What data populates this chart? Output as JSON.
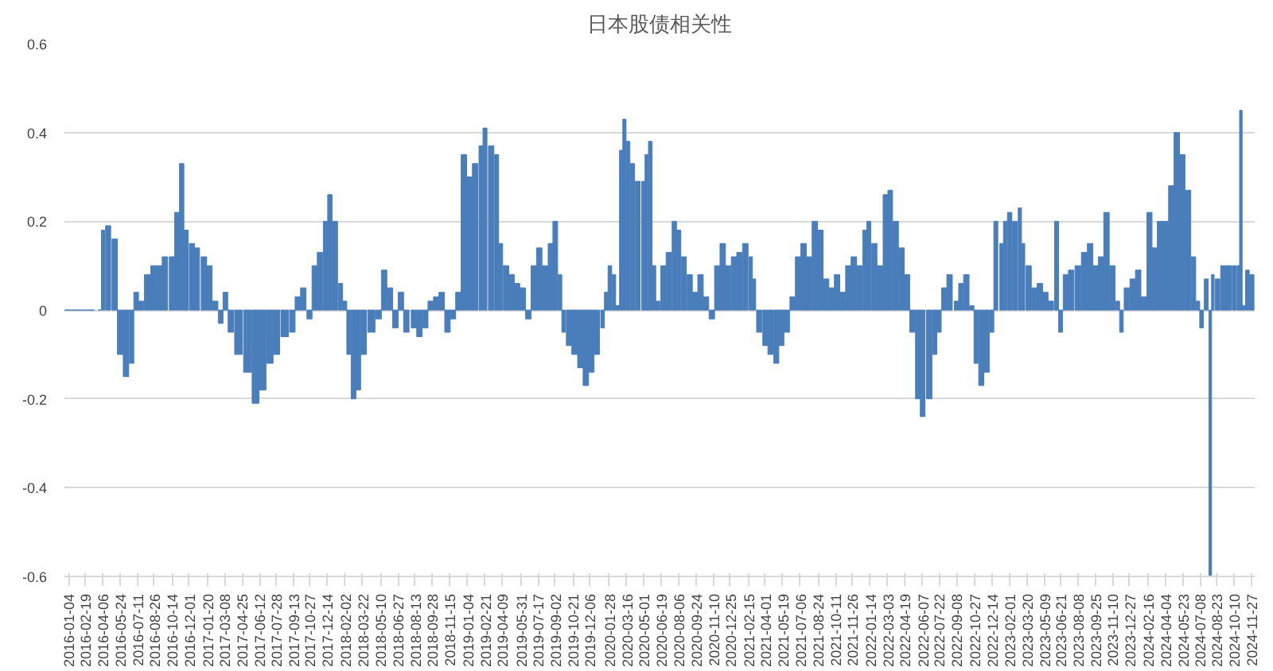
{
  "chart_data": {
    "type": "bar",
    "title": "日本股债相关性",
    "color": "#4a7ebb",
    "grid": "y",
    "xlim": [
      "2015-12-24",
      "2024-12-05"
    ],
    "xticks": [
      "2016-01-04",
      "2016-02-19",
      "2016-04-06",
      "2016-05-24",
      "2016-07-11",
      "2016-08-26",
      "2016-10-14",
      "2016-12-01",
      "2017-01-20",
      "2017-03-08",
      "2017-04-25",
      "2017-06-12",
      "2017-07-28",
      "2017-09-13",
      "2017-10-27",
      "2017-12-14",
      "2018-02-02",
      "2018-03-22",
      "2018-05-10",
      "2018-06-27",
      "2018-08-13",
      "2018-09-28",
      "2018-11-15",
      "2019-01-04",
      "2019-02-21",
      "2019-04-09",
      "2019-05-31",
      "2019-07-17",
      "2019-09-02",
      "2019-10-21",
      "2019-12-06",
      "2020-01-28",
      "2020-03-16",
      "2020-05-01",
      "2020-06-19",
      "2020-08-06",
      "2020-09-24",
      "2020-11-10",
      "2020-12-25",
      "2021-02-15",
      "2021-04-01",
      "2021-05-19",
      "2021-07-06",
      "2021-08-24",
      "2021-10-11",
      "2021-11-26",
      "2022-01-14",
      "2022-03-03",
      "2022-04-19",
      "2022-06-07",
      "2022-07-22",
      "2022-09-08",
      "2022-10-27",
      "2022-12-14",
      "2023-02-01",
      "2023-03-20",
      "2023-05-09",
      "2023-06-21",
      "2023-08-08",
      "2023-09-25",
      "2023-11-10",
      "2023-12-27",
      "2024-02-16",
      "2024-04-04",
      "2024-05-23",
      "2024-07-08",
      "2024-08-23",
      "2024-10-10",
      "2024-11-27"
    ],
    "ylim": [
      -0.6,
      0.6
    ],
    "yticks": [
      -0.6,
      -0.4,
      -0.2,
      0,
      0.2,
      0.4,
      0.6
    ],
    "x": [
      "2016-01-04",
      "2016-02-01",
      "2016-03-01",
      "2016-03-30",
      "2016-04-08",
      "2016-04-22",
      "2016-05-10",
      "2016-05-25",
      "2016-06-10",
      "2016-06-25",
      "2016-07-08",
      "2016-07-22",
      "2016-08-08",
      "2016-08-25",
      "2016-09-10",
      "2016-09-25",
      "2016-10-14",
      "2016-10-28",
      "2016-11-10",
      "2016-11-22",
      "2016-12-08",
      "2016-12-22",
      "2017-01-10",
      "2017-01-25",
      "2017-02-10",
      "2017-02-25",
      "2017-03-10",
      "2017-03-25",
      "2017-04-15",
      "2017-05-10",
      "2017-06-01",
      "2017-06-20",
      "2017-07-10",
      "2017-07-28",
      "2017-08-20",
      "2017-09-10",
      "2017-09-25",
      "2017-10-10",
      "2017-10-27",
      "2017-11-10",
      "2017-11-25",
      "2017-12-10",
      "2017-12-22",
      "2018-01-05",
      "2018-01-20",
      "2018-02-01",
      "2018-02-12",
      "2018-02-25",
      "2018-03-10",
      "2018-03-25",
      "2018-04-15",
      "2018-05-05",
      "2018-05-20",
      "2018-06-05",
      "2018-06-20",
      "2018-07-05",
      "2018-07-20",
      "2018-08-10",
      "2018-08-25",
      "2018-09-10",
      "2018-09-25",
      "2018-10-10",
      "2018-10-25",
      "2018-11-10",
      "2018-11-25",
      "2018-12-10",
      "2018-12-25",
      "2019-01-10",
      "2019-01-25",
      "2019-02-10",
      "2019-02-21",
      "2019-03-10",
      "2019-03-25",
      "2019-04-05",
      "2019-04-20",
      "2019-05-05",
      "2019-05-20",
      "2019-06-05",
      "2019-06-20",
      "2019-07-05",
      "2019-07-20",
      "2019-08-05",
      "2019-08-20",
      "2019-09-02",
      "2019-09-15",
      "2019-09-25",
      "2019-10-10",
      "2019-10-25",
      "2019-11-10",
      "2019-11-25",
      "2019-12-10",
      "2019-12-25",
      "2020-01-10",
      "2020-01-20",
      "2020-01-30",
      "2020-02-10",
      "2020-02-20",
      "2020-03-01",
      "2020-03-10",
      "2020-03-20",
      "2020-04-01",
      "2020-04-15",
      "2020-05-01",
      "2020-05-10",
      "2020-05-20",
      "2020-05-30",
      "2020-06-10",
      "2020-06-25",
      "2020-07-10",
      "2020-07-25",
      "2020-08-06",
      "2020-08-20",
      "2020-09-05",
      "2020-09-20",
      "2020-10-05",
      "2020-10-20",
      "2020-11-05",
      "2020-11-20",
      "2020-12-05",
      "2020-12-20",
      "2021-01-05",
      "2021-01-20",
      "2021-02-05",
      "2021-02-20",
      "2021-03-01",
      "2021-03-15",
      "2021-04-01",
      "2021-04-15",
      "2021-05-01",
      "2021-05-15",
      "2021-05-30",
      "2021-06-15",
      "2021-06-30",
      "2021-07-15",
      "2021-07-30",
      "2021-08-15",
      "2021-08-30",
      "2021-09-15",
      "2021-09-30",
      "2021-10-15",
      "2021-10-30",
      "2021-11-15",
      "2021-11-30",
      "2021-12-15",
      "2021-12-30",
      "2022-01-10",
      "2022-01-25",
      "2022-02-10",
      "2022-02-25",
      "2022-03-10",
      "2022-03-25",
      "2022-04-10",
      "2022-04-25",
      "2022-05-10",
      "2022-05-25",
      "2022-06-07",
      "2022-06-25",
      "2022-07-10",
      "2022-07-22",
      "2022-08-05",
      "2022-08-20",
      "2022-09-08",
      "2022-09-20",
      "2022-10-05",
      "2022-10-20",
      "2022-11-01",
      "2022-11-15",
      "2022-11-30",
      "2022-12-14",
      "2022-12-25",
      "2023-01-10",
      "2023-01-20",
      "2023-02-01",
      "2023-02-15",
      "2023-03-01",
      "2023-03-10",
      "2023-03-25",
      "2023-04-10",
      "2023-04-25",
      "2023-05-10",
      "2023-05-25",
      "2023-06-10",
      "2023-06-21",
      "2023-07-05",
      "2023-07-20",
      "2023-08-08",
      "2023-08-25",
      "2023-09-10",
      "2023-09-25",
      "2023-10-10",
      "2023-10-25",
      "2023-11-10",
      "2023-11-25",
      "2023-12-05",
      "2023-12-20",
      "2024-01-05",
      "2024-01-20",
      "2024-02-05",
      "2024-02-20",
      "2024-03-05",
      "2024-03-20",
      "2024-04-05",
      "2024-04-20",
      "2024-05-05",
      "2024-05-20",
      "2024-06-05",
      "2024-06-20",
      "2024-07-02",
      "2024-07-12",
      "2024-07-25",
      "2024-08-05",
      "2024-08-12",
      "2024-08-25",
      "2024-09-10",
      "2024-09-25",
      "2024-10-10",
      "2024-10-21",
      "2024-10-28",
      "2024-11-05",
      "2024-11-15",
      "2024-11-27"
    ],
    "values": [
      0,
      0,
      0,
      0,
      0.18,
      0.19,
      0.16,
      -0.1,
      -0.15,
      -0.12,
      0.04,
      0.02,
      0.08,
      0.1,
      0.1,
      0.12,
      0.12,
      0.22,
      0.33,
      0.18,
      0.15,
      0.14,
      0.12,
      0.1,
      0.02,
      -0.03,
      0.04,
      -0.05,
      -0.1,
      -0.14,
      -0.21,
      -0.18,
      -0.12,
      -0.1,
      -0.06,
      -0.05,
      0.03,
      0.05,
      -0.02,
      0.1,
      0.13,
      0.2,
      0.26,
      0.2,
      0.06,
      0.02,
      -0.1,
      -0.2,
      -0.18,
      -0.1,
      -0.05,
      -0.02,
      0.09,
      0.05,
      -0.04,
      0.04,
      -0.05,
      -0.04,
      -0.06,
      -0.04,
      0.02,
      0.03,
      0.04,
      -0.05,
      -0.02,
      0.04,
      0.35,
      0.3,
      0.33,
      0.37,
      0.41,
      0.37,
      0.35,
      0.15,
      0.1,
      0.08,
      0.06,
      0.05,
      -0.02,
      0.1,
      0.14,
      0.1,
      0.15,
      0.2,
      0.08,
      -0.05,
      -0.08,
      -0.1,
      -0.13,
      -0.17,
      -0.14,
      -0.1,
      -0.04,
      0.04,
      0.1,
      0.08,
      0.01,
      0.36,
      0.43,
      0.38,
      0.33,
      0.29,
      0.29,
      0.35,
      0.38,
      0.1,
      0.02,
      0.1,
      0.13,
      0.2,
      0.18,
      0.12,
      0.08,
      0.04,
      0.08,
      0.03,
      -0.02,
      0.1,
      0.15,
      0.1,
      0.12,
      0.13,
      0.15,
      0.12,
      0.07,
      -0.05,
      -0.08,
      -0.1,
      -0.12,
      -0.08,
      -0.05,
      0.03,
      0.12,
      0.15,
      0.12,
      0.2,
      0.18,
      0.07,
      0.05,
      0.08,
      0.04,
      0.1,
      0.12,
      0.1,
      0.18,
      0.2,
      0.15,
      0.1,
      0.26,
      0.27,
      0.2,
      0.14,
      0.08,
      -0.05,
      -0.2,
      -0.24,
      -0.2,
      -0.1,
      -0.05,
      0.05,
      0.08,
      0.02,
      0.06,
      0.08,
      0.01,
      -0.12,
      -0.17,
      -0.14,
      -0.05,
      0.2,
      0.15,
      0.2,
      0.22,
      0.2,
      0.23,
      0.15,
      0.1,
      0.05,
      0.06,
      0.04,
      0.02,
      0.2,
      -0.05,
      0.08,
      0.09,
      0.1,
      0.13,
      0.15,
      0.1,
      0.12,
      0.22,
      0.1,
      0.02,
      -0.05,
      0.05,
      0.07,
      0.09,
      0.03,
      0.22,
      0.14,
      0.2,
      0.2,
      0.28,
      0.4,
      0.35,
      0.27,
      0.12,
      0.02,
      -0.04,
      0.07,
      -0.6,
      0.08,
      0.07,
      0.1,
      0.1,
      0.1,
      0.1,
      0.45,
      0.01,
      0.09,
      0.08
    ]
  }
}
